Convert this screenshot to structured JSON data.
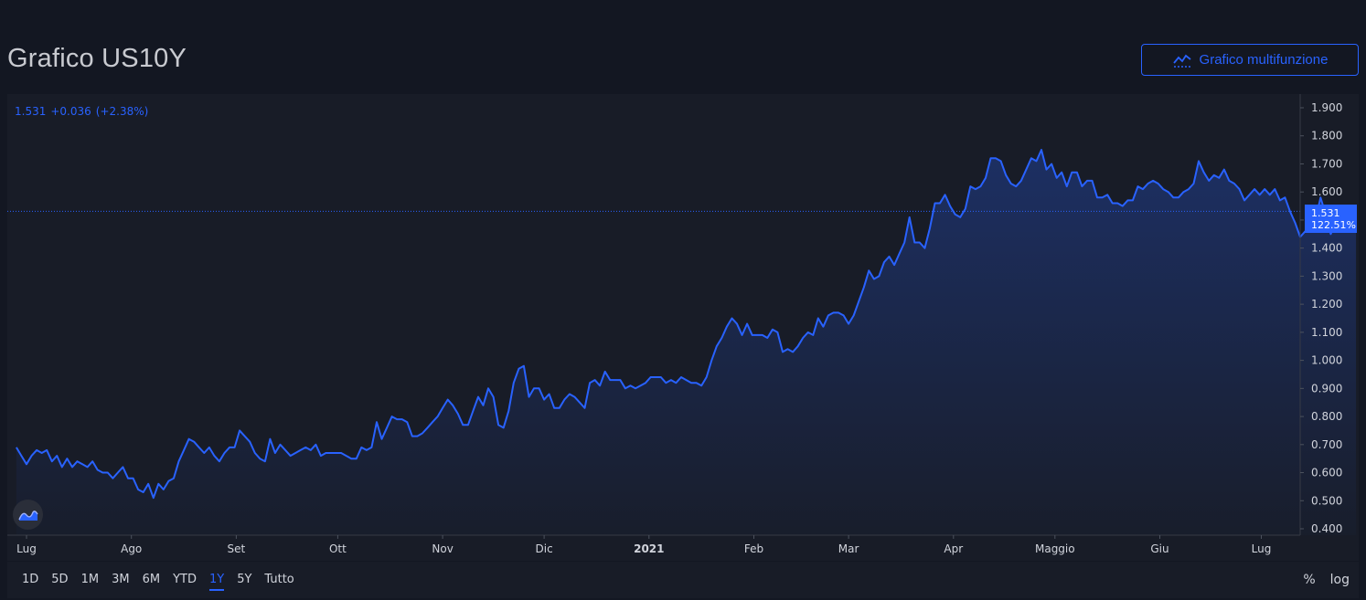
{
  "header": {
    "title": "Grafico US10Y",
    "multi_button_label": "Grafico multifunzione"
  },
  "quote": {
    "price": "1.531",
    "change": "+0.036",
    "change_pct": "(+2.38%)"
  },
  "badge": {
    "price": "1.531",
    "pct": "122.51%"
  },
  "range_buttons": [
    "1D",
    "5D",
    "1M",
    "3M",
    "6M",
    "YTD",
    "1Y",
    "5Y",
    "Tutto"
  ],
  "active_range": "1Y",
  "tools": {
    "percent": "%",
    "log": "log"
  },
  "colors": {
    "line": "#2962ff",
    "background": "#131722",
    "panel": "#181c27",
    "text": "#d1d4dc"
  },
  "chart_data": {
    "type": "area",
    "title": "",
    "xlabel": "",
    "ylabel": "",
    "ylim": [
      0.4,
      1.9
    ],
    "y_ticks": [
      "1.900",
      "1.800",
      "1.700",
      "1.600",
      "1.500",
      "1.400",
      "1.300",
      "1.200",
      "1.100",
      "1.000",
      "0.900",
      "0.800",
      "0.700",
      "0.600",
      "0.500",
      "0.400"
    ],
    "x_ticks": [
      {
        "label": "Lug",
        "t": 0
      },
      {
        "label": "Ago",
        "t": 31
      },
      {
        "label": "Set",
        "t": 62
      },
      {
        "label": "Ott",
        "t": 92
      },
      {
        "label": "Nov",
        "t": 123
      },
      {
        "label": "Dic",
        "t": 153
      },
      {
        "label": "2021",
        "t": 184
      },
      {
        "label": "Feb",
        "t": 215
      },
      {
        "label": "Mar",
        "t": 243
      },
      {
        "label": "Apr",
        "t": 274
      },
      {
        "label": "Maggio",
        "t": 304
      },
      {
        "label": "Giu",
        "t": 335
      },
      {
        "label": "Lug",
        "t": 365
      }
    ],
    "last_value": 1.531,
    "series": [
      {
        "values": [
          [
            -3,
            0.69
          ],
          [
            -1.5,
            0.66
          ],
          [
            0,
            0.63
          ],
          [
            1.5,
            0.66
          ],
          [
            3,
            0.68
          ],
          [
            4.5,
            0.67
          ],
          [
            6,
            0.68
          ],
          [
            7.5,
            0.64
          ],
          [
            9,
            0.66
          ],
          [
            10.5,
            0.62
          ],
          [
            12,
            0.65
          ],
          [
            13.5,
            0.62
          ],
          [
            15,
            0.64
          ],
          [
            16.5,
            0.63
          ],
          [
            18,
            0.62
          ],
          [
            19.5,
            0.64
          ],
          [
            21,
            0.61
          ],
          [
            22.5,
            0.6
          ],
          [
            24,
            0.6
          ],
          [
            25.5,
            0.58
          ],
          [
            27,
            0.6
          ],
          [
            28.5,
            0.62
          ],
          [
            30,
            0.58
          ],
          [
            31.5,
            0.58
          ],
          [
            33,
            0.54
          ],
          [
            34.5,
            0.53
          ],
          [
            36,
            0.56
          ],
          [
            37.5,
            0.51
          ],
          [
            39,
            0.56
          ],
          [
            40.5,
            0.54
          ],
          [
            42,
            0.57
          ],
          [
            43.5,
            0.58
          ],
          [
            45,
            0.64
          ],
          [
            46.5,
            0.68
          ],
          [
            48,
            0.72
          ],
          [
            49.5,
            0.71
          ],
          [
            51,
            0.69
          ],
          [
            52.5,
            0.67
          ],
          [
            54,
            0.69
          ],
          [
            55.5,
            0.66
          ],
          [
            57,
            0.64
          ],
          [
            58.5,
            0.67
          ],
          [
            60,
            0.69
          ],
          [
            61.5,
            0.69
          ],
          [
            63,
            0.75
          ],
          [
            64.5,
            0.73
          ],
          [
            66,
            0.71
          ],
          [
            67.5,
            0.67
          ],
          [
            69,
            0.65
          ],
          [
            70.5,
            0.64
          ],
          [
            72,
            0.72
          ],
          [
            73.5,
            0.67
          ],
          [
            75,
            0.7
          ],
          [
            76.5,
            0.68
          ],
          [
            78,
            0.66
          ],
          [
            79.5,
            0.67
          ],
          [
            81,
            0.68
          ],
          [
            82.5,
            0.69
          ],
          [
            84,
            0.68
          ],
          [
            85.5,
            0.7
          ],
          [
            87,
            0.66
          ],
          [
            88.5,
            0.67
          ],
          [
            90,
            0.67
          ],
          [
            91.5,
            0.67
          ],
          [
            93,
            0.67
          ],
          [
            94.5,
            0.66
          ],
          [
            96,
            0.65
          ],
          [
            97.5,
            0.65
          ],
          [
            99,
            0.69
          ],
          [
            100.5,
            0.68
          ],
          [
            102,
            0.69
          ],
          [
            103.5,
            0.78
          ],
          [
            105,
            0.72
          ],
          [
            106.5,
            0.76
          ],
          [
            108,
            0.8
          ],
          [
            109.5,
            0.79
          ],
          [
            111,
            0.79
          ],
          [
            112.5,
            0.78
          ],
          [
            114,
            0.73
          ],
          [
            115.5,
            0.73
          ],
          [
            117,
            0.74
          ],
          [
            118.5,
            0.76
          ],
          [
            120,
            0.78
          ],
          [
            121.5,
            0.8
          ],
          [
            123,
            0.83
          ],
          [
            124.5,
            0.86
          ],
          [
            126,
            0.84
          ],
          [
            127.5,
            0.81
          ],
          [
            129,
            0.77
          ],
          [
            130.5,
            0.77
          ],
          [
            132,
            0.82
          ],
          [
            133.5,
            0.87
          ],
          [
            135,
            0.84
          ],
          [
            136.5,
            0.9
          ],
          [
            138,
            0.87
          ],
          [
            139.5,
            0.77
          ],
          [
            141,
            0.76
          ],
          [
            142.5,
            0.82
          ],
          [
            144,
            0.92
          ],
          [
            145.5,
            0.97
          ],
          [
            147,
            0.98
          ],
          [
            148.5,
            0.87
          ],
          [
            150,
            0.9
          ],
          [
            151.5,
            0.9
          ],
          [
            153,
            0.86
          ],
          [
            154.5,
            0.88
          ],
          [
            156,
            0.83
          ],
          [
            157.5,
            0.83
          ],
          [
            159,
            0.86
          ],
          [
            160.5,
            0.88
          ],
          [
            162,
            0.87
          ],
          [
            163.5,
            0.85
          ],
          [
            165,
            0.83
          ],
          [
            166.5,
            0.92
          ],
          [
            168,
            0.93
          ],
          [
            169.5,
            0.91
          ],
          [
            171,
            0.96
          ],
          [
            172.5,
            0.93
          ],
          [
            174,
            0.93
          ],
          [
            175.5,
            0.93
          ],
          [
            177,
            0.9
          ],
          [
            178.5,
            0.91
          ],
          [
            180,
            0.9
          ],
          [
            181.5,
            0.91
          ],
          [
            183,
            0.92
          ],
          [
            184.5,
            0.94
          ],
          [
            186,
            0.94
          ],
          [
            187.5,
            0.94
          ],
          [
            189,
            0.92
          ],
          [
            190.5,
            0.93
          ],
          [
            192,
            0.92
          ],
          [
            193.5,
            0.94
          ],
          [
            195,
            0.93
          ],
          [
            196.5,
            0.92
          ],
          [
            198,
            0.92
          ],
          [
            199.5,
            0.91
          ],
          [
            201,
            0.94
          ],
          [
            202.5,
            1.0
          ],
          [
            204,
            1.05
          ],
          [
            205.5,
            1.08
          ],
          [
            207,
            1.12
          ],
          [
            208.5,
            1.15
          ],
          [
            210,
            1.13
          ],
          [
            211.5,
            1.09
          ],
          [
            213,
            1.13
          ],
          [
            214.5,
            1.09
          ],
          [
            216,
            1.09
          ],
          [
            217.5,
            1.09
          ],
          [
            219,
            1.08
          ],
          [
            220.5,
            1.11
          ],
          [
            222,
            1.1
          ],
          [
            223.5,
            1.03
          ],
          [
            225,
            1.04
          ],
          [
            226.5,
            1.03
          ],
          [
            228,
            1.05
          ],
          [
            229.5,
            1.08
          ],
          [
            231,
            1.1
          ],
          [
            232.5,
            1.09
          ],
          [
            234,
            1.15
          ],
          [
            235.5,
            1.12
          ],
          [
            237,
            1.16
          ],
          [
            238.5,
            1.17
          ],
          [
            240,
            1.17
          ],
          [
            241.5,
            1.16
          ],
          [
            243,
            1.13
          ],
          [
            244.5,
            1.16
          ],
          [
            246,
            1.21
          ],
          [
            247.5,
            1.26
          ],
          [
            249,
            1.32
          ],
          [
            250.5,
            1.29
          ],
          [
            252,
            1.3
          ],
          [
            253.5,
            1.35
          ],
          [
            255,
            1.37
          ],
          [
            256.5,
            1.34
          ],
          [
            258,
            1.38
          ],
          [
            259.5,
            1.42
          ],
          [
            261,
            1.51
          ],
          [
            262.5,
            1.42
          ],
          [
            264,
            1.42
          ],
          [
            265.5,
            1.4
          ],
          [
            267,
            1.47
          ],
          [
            268.5,
            1.56
          ],
          [
            270,
            1.56
          ],
          [
            271.5,
            1.59
          ],
          [
            273,
            1.55
          ],
          [
            274.5,
            1.52
          ],
          [
            276,
            1.51
          ],
          [
            277.5,
            1.54
          ],
          [
            279,
            1.62
          ],
          [
            280.5,
            1.61
          ],
          [
            282,
            1.62
          ],
          [
            283.5,
            1.65
          ],
          [
            285,
            1.72
          ],
          [
            286.5,
            1.72
          ],
          [
            288,
            1.71
          ],
          [
            289.5,
            1.66
          ],
          [
            291,
            1.63
          ],
          [
            292.5,
            1.62
          ],
          [
            294,
            1.64
          ],
          [
            295.5,
            1.68
          ],
          [
            297,
            1.72
          ],
          [
            298.5,
            1.71
          ],
          [
            300,
            1.75
          ],
          [
            301.5,
            1.68
          ],
          [
            303,
            1.7
          ],
          [
            304.5,
            1.65
          ],
          [
            306,
            1.67
          ],
          [
            307.5,
            1.62
          ],
          [
            309,
            1.67
          ],
          [
            310.5,
            1.67
          ],
          [
            312,
            1.62
          ],
          [
            313.5,
            1.64
          ],
          [
            315,
            1.64
          ],
          [
            316.5,
            1.58
          ],
          [
            318,
            1.58
          ],
          [
            319.5,
            1.59
          ],
          [
            321,
            1.56
          ],
          [
            322.5,
            1.56
          ],
          [
            324,
            1.55
          ],
          [
            325.5,
            1.57
          ],
          [
            327,
            1.57
          ],
          [
            328.5,
            1.62
          ],
          [
            330,
            1.61
          ],
          [
            331.5,
            1.63
          ],
          [
            333,
            1.64
          ],
          [
            334.5,
            1.63
          ],
          [
            336,
            1.61
          ],
          [
            337.5,
            1.6
          ],
          [
            339,
            1.58
          ],
          [
            340.5,
            1.58
          ],
          [
            342,
            1.6
          ],
          [
            343.5,
            1.61
          ],
          [
            345,
            1.63
          ],
          [
            346.5,
            1.71
          ],
          [
            348,
            1.67
          ],
          [
            349.5,
            1.64
          ],
          [
            351,
            1.66
          ],
          [
            352.5,
            1.65
          ],
          [
            354,
            1.68
          ],
          [
            355.5,
            1.64
          ],
          [
            357,
            1.63
          ],
          [
            358.5,
            1.61
          ],
          [
            360,
            1.57
          ],
          [
            361.5,
            1.59
          ],
          [
            363,
            1.61
          ],
          [
            364.5,
            1.59
          ],
          [
            366,
            1.61
          ],
          [
            367.5,
            1.59
          ],
          [
            369,
            1.61
          ],
          [
            370.5,
            1.57
          ],
          [
            372,
            1.58
          ],
          [
            373.5,
            1.53
          ],
          [
            375,
            1.49
          ],
          [
            376.5,
            1.44
          ],
          [
            378,
            1.46
          ],
          [
            379.5,
            1.49
          ],
          [
            381,
            1.5
          ],
          [
            382.5,
            1.58
          ],
          [
            384,
            1.52
          ],
          [
            385.5,
            1.45
          ],
          [
            387,
            1.49
          ],
          [
            388.5,
            1.47
          ],
          [
            390,
            1.49
          ],
          [
            391.5,
            1.5
          ],
          [
            393,
            1.531
          ]
        ]
      }
    ]
  }
}
